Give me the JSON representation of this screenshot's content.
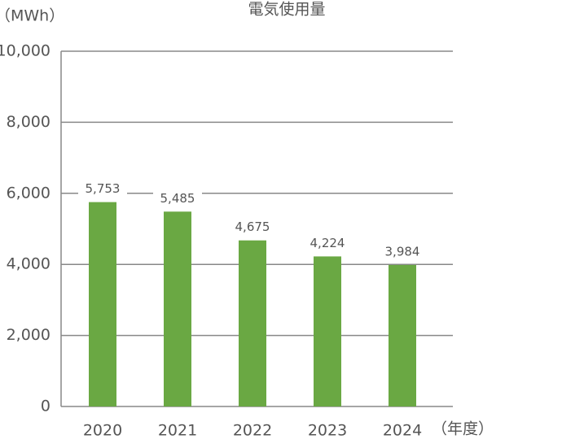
{
  "chart_data": {
    "type": "bar",
    "title": "電気使用量",
    "y_label": "（MWh）",
    "x_label": "（年度）",
    "categories": [
      "2020",
      "2021",
      "2022",
      "2023",
      "2024"
    ],
    "values": [
      5753,
      5485,
      4675,
      4224,
      3984
    ],
    "value_labels": [
      "5,753",
      "5,485",
      "4,675",
      "4,224",
      "3,984"
    ],
    "color": "#6aa843",
    "ylim": [
      0,
      10000
    ],
    "yticks": [
      0,
      {
        "value": 2000,
        "label": "2,000"
      },
      {
        "value": 4000,
        "label": "4,000"
      },
      {
        "value": 6000,
        "label": "6,000"
      },
      {
        "value": 8000,
        "label": "8,000"
      },
      {
        "value": 10000,
        "label": "10,000"
      }
    ],
    "grid": true
  }
}
